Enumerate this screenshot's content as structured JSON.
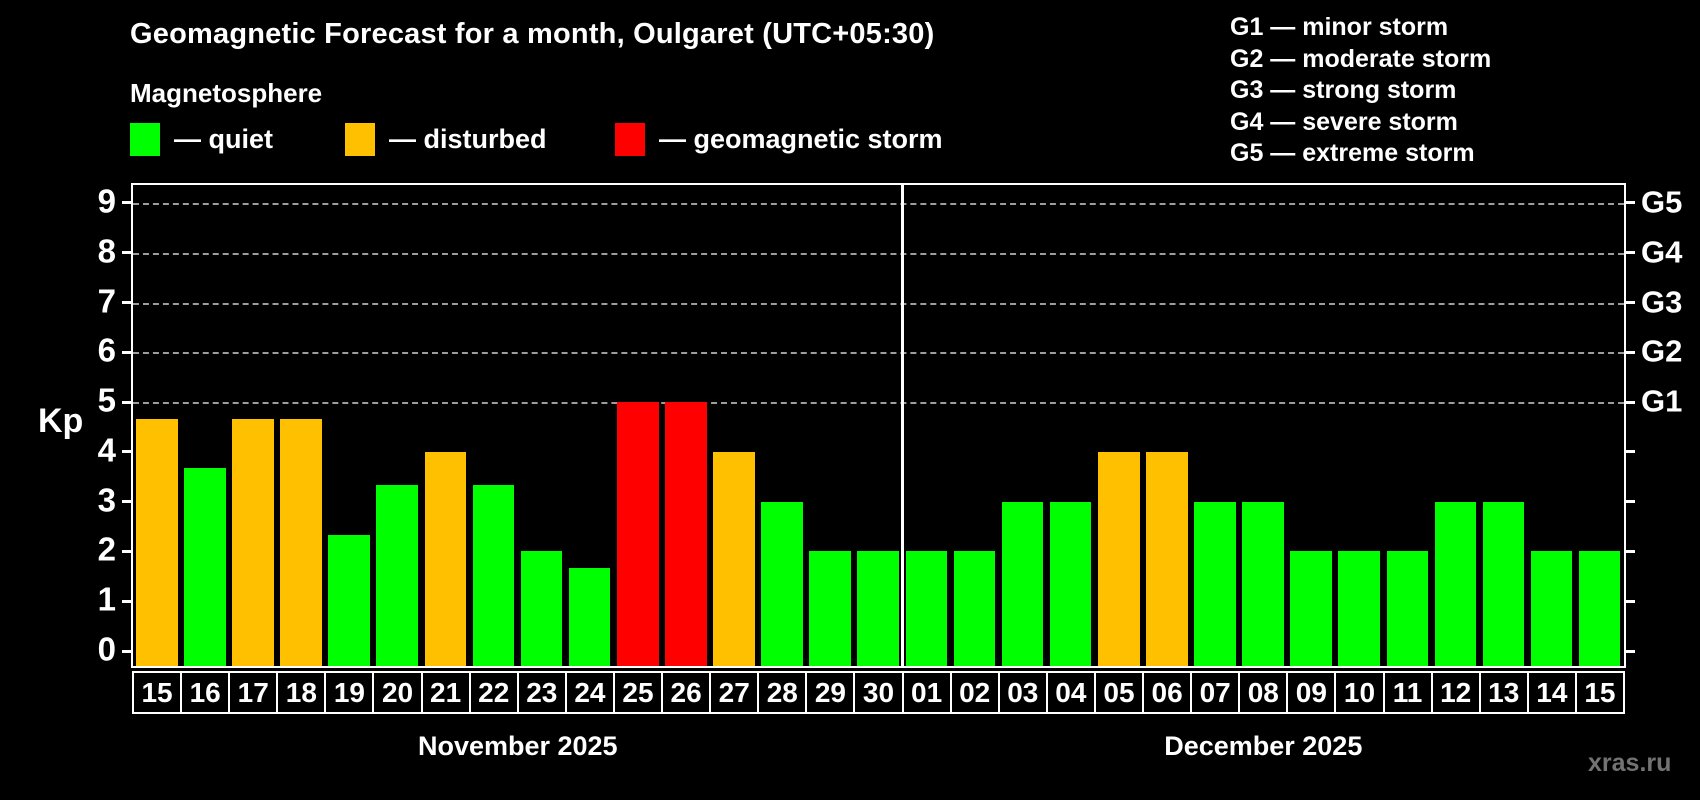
{
  "title": "Geomagnetic Forecast for a month, Oulgaret (UTC+05:30)",
  "subtitle": "Magnetosphere",
  "watermark": "xras.ru",
  "legend": [
    {
      "key": "quiet",
      "label": "— quiet",
      "color": "#00ff00"
    },
    {
      "key": "disturbed",
      "label": "— disturbed",
      "color": "#ffc000"
    },
    {
      "key": "storm",
      "label": "— geomagnetic storm",
      "color": "#ff0000"
    }
  ],
  "g_legend": [
    "G1 — minor storm",
    "G2 — moderate storm",
    "G3 — strong storm",
    "G4 — severe storm",
    "G5 — extreme storm"
  ],
  "chart_data": {
    "type": "bar",
    "title": "Geomagnetic Forecast for a month, Oulgaret (UTC+05:30)",
    "ylabel": "Kp",
    "ylim": [
      0,
      9
    ],
    "y_ticks": [
      0,
      1,
      2,
      3,
      4,
      5,
      6,
      7,
      8,
      9
    ],
    "gridlines_kp": [
      5,
      6,
      7,
      8,
      9
    ],
    "grid": "dashed, on storm levels only",
    "legend_position": "top",
    "right_axis_labels": [
      {
        "kp": 5,
        "label": "G1"
      },
      {
        "kp": 6,
        "label": "G2"
      },
      {
        "kp": 7,
        "label": "G3"
      },
      {
        "kp": 8,
        "label": "G4"
      },
      {
        "kp": 9,
        "label": "G5"
      }
    ],
    "colors": {
      "quiet": "#00ff00",
      "disturbed": "#ffc000",
      "storm": "#ff0000"
    },
    "months": [
      {
        "label": "November 2025",
        "days": [
          {
            "day": "15",
            "kp": 4.67,
            "status": "disturbed"
          },
          {
            "day": "16",
            "kp": 3.67,
            "status": "quiet"
          },
          {
            "day": "17",
            "kp": 4.67,
            "status": "disturbed"
          },
          {
            "day": "18",
            "kp": 4.67,
            "status": "disturbed"
          },
          {
            "day": "19",
            "kp": 2.33,
            "status": "quiet"
          },
          {
            "day": "20",
            "kp": 3.33,
            "status": "quiet"
          },
          {
            "day": "21",
            "kp": 4,
            "status": "disturbed"
          },
          {
            "day": "22",
            "kp": 3.33,
            "status": "quiet"
          },
          {
            "day": "23",
            "kp": 2,
            "status": "quiet"
          },
          {
            "day": "24",
            "kp": 1.67,
            "status": "quiet"
          },
          {
            "day": "25",
            "kp": 5,
            "status": "storm"
          },
          {
            "day": "26",
            "kp": 5,
            "status": "storm"
          },
          {
            "day": "27",
            "kp": 4,
            "status": "disturbed"
          },
          {
            "day": "28",
            "kp": 3,
            "status": "quiet"
          },
          {
            "day": "29",
            "kp": 2,
            "status": "quiet"
          },
          {
            "day": "30",
            "kp": 2,
            "status": "quiet"
          }
        ]
      },
      {
        "label": "December 2025",
        "days": [
          {
            "day": "01",
            "kp": 2,
            "status": "quiet"
          },
          {
            "day": "02",
            "kp": 2,
            "status": "quiet"
          },
          {
            "day": "03",
            "kp": 3,
            "status": "quiet"
          },
          {
            "day": "04",
            "kp": 3,
            "status": "quiet"
          },
          {
            "day": "05",
            "kp": 4,
            "status": "disturbed"
          },
          {
            "day": "06",
            "kp": 4,
            "status": "disturbed"
          },
          {
            "day": "07",
            "kp": 3,
            "status": "quiet"
          },
          {
            "day": "08",
            "kp": 3,
            "status": "quiet"
          },
          {
            "day": "09",
            "kp": 2,
            "status": "quiet"
          },
          {
            "day": "10",
            "kp": 2,
            "status": "quiet"
          },
          {
            "day": "11",
            "kp": 2,
            "status": "quiet"
          },
          {
            "day": "12",
            "kp": 3,
            "status": "quiet"
          },
          {
            "day": "13",
            "kp": 3,
            "status": "quiet"
          },
          {
            "day": "14",
            "kp": 2,
            "status": "quiet"
          },
          {
            "day": "15",
            "kp": 2,
            "status": "quiet"
          }
        ]
      }
    ]
  }
}
